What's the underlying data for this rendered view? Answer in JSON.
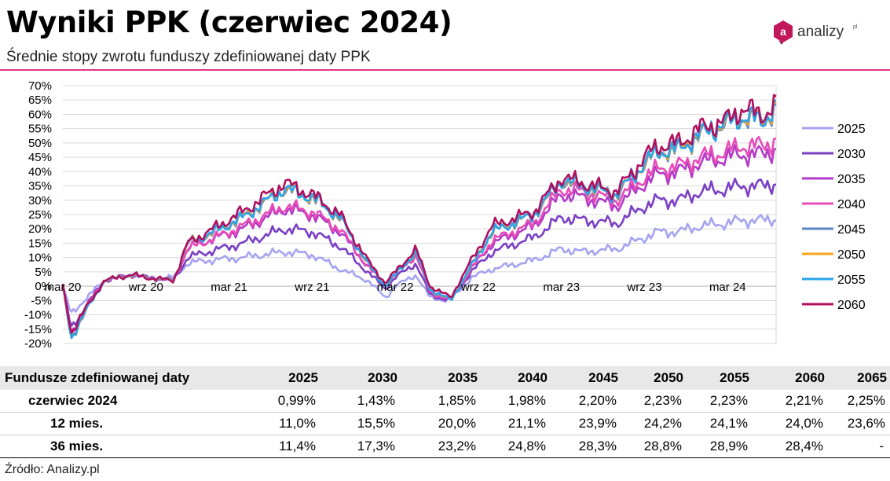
{
  "header": {
    "title": "Wyniki PPK (czerwiec 2024)",
    "subtitle": "Średnie stopy zwrotu funduszy zdefiniowanej daty PPK",
    "logo_text": "analizy",
    "logo_sup": "pl",
    "accent_color": "#e2338a",
    "logo_color": "#c2185b"
  },
  "chart_data": {
    "type": "line",
    "x_tick_labels": [
      "mar 20",
      "wrz 20",
      "mar 21",
      "wrz 21",
      "mar 22",
      "wrz 22",
      "mar 23",
      "wrz 23",
      "mar 24"
    ],
    "y_tick_labels": [
      "70%",
      "65%",
      "60%",
      "55%",
      "50%",
      "45%",
      "40%",
      "35%",
      "30%",
      "25%",
      "20%",
      "15%",
      "10%",
      "5%",
      "0%",
      "-5%",
      "-10%",
      "-15%",
      "-20%"
    ],
    "ylim": [
      -20,
      70
    ],
    "x_unit": "months since Mar 2020",
    "xlim": [
      0,
      51.5
    ],
    "grid": true,
    "legend_position": "right",
    "anchors_x": [
      0,
      0.6,
      1.5,
      3,
      5,
      6,
      8,
      9,
      10.5,
      13,
      16,
      18,
      20,
      22,
      23.3,
      24,
      25.5,
      26.5,
      28,
      29.5,
      31,
      34,
      36,
      37.5,
      40,
      42,
      43,
      44.5,
      46,
      48,
      49,
      50.5,
      51.5
    ],
    "series": [
      {
        "name": "2025",
        "color": "#a6a3f0",
        "values": [
          0,
          -10,
          -5,
          2,
          4,
          3,
          3,
          8,
          9,
          10,
          12,
          11,
          6,
          2,
          -4,
          0,
          4,
          -4,
          -5,
          3,
          6,
          9,
          13,
          12,
          13,
          17,
          19,
          19,
          21,
          22,
          23,
          23,
          23.5
        ]
      },
      {
        "name": "2030",
        "color": "#7a3fc4",
        "values": [
          0,
          -15,
          -8,
          2,
          4,
          3,
          2,
          10,
          12,
          15,
          20,
          19,
          14,
          5,
          -1,
          3,
          8,
          -3,
          -5,
          5,
          12,
          17,
          24,
          23,
          22,
          28,
          30,
          30,
          33,
          34,
          35,
          35,
          36
        ]
      },
      {
        "name": "2035",
        "color": "#b23ac7",
        "values": [
          0,
          -17,
          -9,
          2,
          4,
          3,
          2,
          13,
          16,
          20,
          27,
          25,
          19,
          7,
          0,
          4,
          11,
          -2,
          -5,
          6,
          15,
          21,
          32,
          31,
          28,
          36,
          39,
          40,
          43,
          45,
          46,
          46,
          48
        ]
      },
      {
        "name": "2040",
        "color": "#e84bb8",
        "values": [
          0,
          -17,
          -9,
          2,
          4,
          3,
          2,
          13,
          16,
          21,
          28,
          26,
          20,
          7,
          0,
          4,
          11,
          -2,
          -5,
          6,
          16,
          22,
          34,
          33,
          30,
          38,
          41,
          42,
          45,
          47,
          49,
          49,
          51
        ]
      },
      {
        "name": "2045",
        "color": "#5b86c7",
        "values": [
          0,
          -18,
          -10,
          2,
          4,
          3,
          2,
          15,
          18,
          24,
          34,
          31,
          24,
          8,
          0,
          4,
          12,
          -1,
          -5,
          7,
          19,
          25,
          37,
          35,
          32,
          43,
          47,
          48,
          53,
          57,
          59,
          58,
          62
        ]
      },
      {
        "name": "2050",
        "color": "#f5a623",
        "values": [
          0,
          -18,
          -10,
          2,
          4,
          3,
          2,
          15,
          18,
          24,
          34,
          31,
          24,
          8,
          0,
          4,
          12,
          -1,
          -5,
          7,
          19,
          25,
          37,
          35,
          32,
          43,
          47,
          48,
          53,
          57,
          59,
          58,
          62
        ]
      },
      {
        "name": "2055",
        "color": "#2aa3e8",
        "values": [
          0,
          -18,
          -10,
          2,
          4,
          3,
          2,
          15,
          18,
          24,
          34,
          31,
          24,
          8,
          0,
          4,
          12,
          -1,
          -5,
          7,
          19,
          25,
          37,
          35,
          32,
          43,
          47,
          48,
          53,
          57,
          59,
          58,
          62
        ]
      },
      {
        "name": "2060",
        "color": "#b0105e",
        "values": [
          0,
          -16,
          -9,
          2,
          4,
          3,
          2,
          15,
          19,
          26,
          36,
          32,
          25,
          9,
          1,
          5,
          13,
          0,
          -4,
          9,
          21,
          26,
          38,
          36,
          33,
          45,
          49,
          50,
          55,
          58,
          62,
          60,
          63
        ]
      }
    ]
  },
  "table": {
    "header_label": "Fundusze zdefiniowanej daty",
    "columns": [
      "2025",
      "2030",
      "2035",
      "2040",
      "2045",
      "2050",
      "2055",
      "2060",
      "2065"
    ],
    "rows": [
      {
        "label": "czerwiec 2024",
        "values": [
          "0,99%",
          "1,43%",
          "1,85%",
          "1,98%",
          "2,20%",
          "2,23%",
          "2,23%",
          "2,21%",
          "2,25%"
        ]
      },
      {
        "label": "12 mies.",
        "values": [
          "11,0%",
          "15,5%",
          "20,0%",
          "21,1%",
          "23,9%",
          "24,2%",
          "24,1%",
          "24,0%",
          "23,6%"
        ]
      },
      {
        "label": "36 mies.",
        "values": [
          "11,4%",
          "17,3%",
          "23,2%",
          "24,8%",
          "28,3%",
          "28,8%",
          "28,9%",
          "28,4%",
          "-"
        ]
      }
    ]
  },
  "footer": {
    "source": "Źródło: Analizy.pl"
  }
}
